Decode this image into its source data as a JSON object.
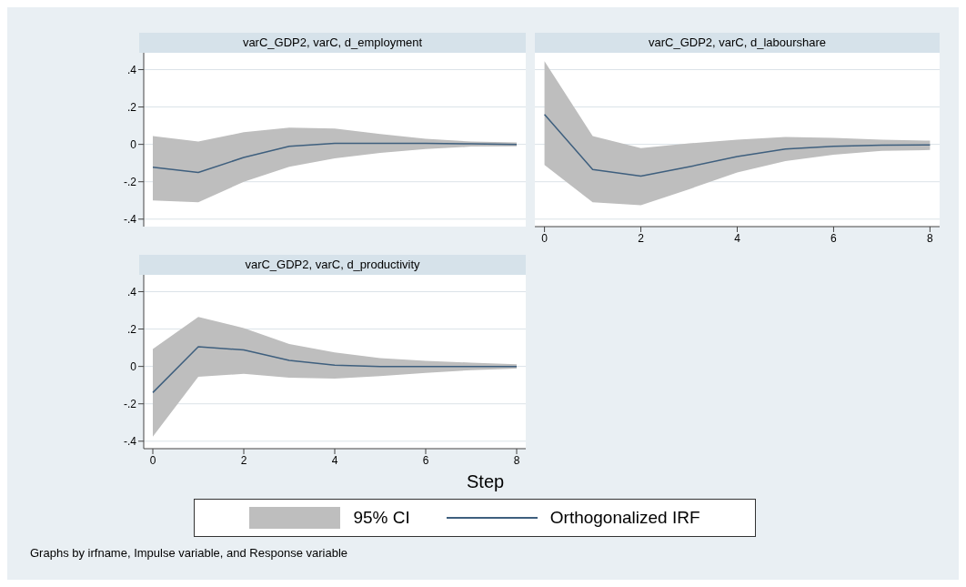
{
  "chart_data": [
    {
      "type": "line",
      "title": "varC_GDP2, varC, d_employment",
      "x": [
        0,
        1,
        2,
        3,
        4,
        5,
        6,
        7,
        8
      ],
      "xlim": [
        -0.2,
        8.2
      ],
      "xticks": [
        0,
        2,
        4,
        6,
        8
      ],
      "ylim": [
        -0.44,
        0.49
      ],
      "yticks": [
        {
          "value": -0.4,
          "label": "-.4"
        },
        {
          "value": -0.2,
          "label": "-.2"
        },
        0,
        {
          "value": 0.2,
          "label": ".2"
        },
        {
          "value": 0.4,
          "label": ".4"
        }
      ],
      "grid": "y",
      "tick_labels": "y",
      "legend": false,
      "series": [
        {
          "color": "#3e5f7e",
          "values": [
            -0.122,
            -0.15,
            -0.07,
            -0.01,
            0.005,
            0.005,
            0.005,
            0.003,
            0
          ],
          "lower": [
            -0.3,
            -0.31,
            -0.2,
            -0.12,
            -0.075,
            -0.045,
            -0.025,
            -0.012,
            -0.01
          ],
          "upper": [
            0.045,
            0.015,
            0.065,
            0.09,
            0.085,
            0.055,
            0.03,
            0.015,
            0.01
          ]
        }
      ]
    },
    {
      "type": "line",
      "title": "varC_GDP2, varC, d_labourshare",
      "x": [
        0,
        1,
        2,
        3,
        4,
        5,
        6,
        7,
        8
      ],
      "xlim": [
        -0.2,
        8.2
      ],
      "xticks": [
        0,
        2,
        4,
        6,
        8
      ],
      "ylim": [
        -0.44,
        0.49
      ],
      "yticks": [
        -0.4,
        -0.2,
        0,
        0.2,
        0.4
      ],
      "grid": "y",
      "tick_labels": "x",
      "legend": false,
      "series": [
        {
          "color": "#3e5f7e",
          "values": [
            0.16,
            -0.135,
            -0.17,
            -0.12,
            -0.065,
            -0.025,
            -0.01,
            -0.004,
            -0.003
          ],
          "lower": [
            -0.11,
            -0.31,
            -0.325,
            -0.24,
            -0.15,
            -0.09,
            -0.055,
            -0.035,
            -0.03
          ],
          "upper": [
            0.445,
            0.045,
            -0.02,
            0.005,
            0.025,
            0.04,
            0.035,
            0.025,
            0.02
          ]
        }
      ]
    },
    {
      "type": "line",
      "title": "varC_GDP2, varC, d_productivity",
      "xlabel": "Step",
      "x": [
        0,
        1,
        2,
        3,
        4,
        5,
        6,
        7,
        8
      ],
      "xlim": [
        -0.2,
        8.2
      ],
      "xticks": [
        0,
        2,
        4,
        6,
        8
      ],
      "ylim": [
        -0.44,
        0.49
      ],
      "yticks": [
        {
          "value": -0.4,
          "label": "-.4"
        },
        {
          "value": -0.2,
          "label": "-.2"
        },
        0,
        {
          "value": 0.2,
          "label": ".2"
        },
        {
          "value": 0.4,
          "label": ".4"
        }
      ],
      "grid": "y",
      "legend": "bottom",
      "annotations": [
        "95% CI",
        "Graphs by irfname, Impulse variable, and Response variable"
      ],
      "series": [
        {
          "name": "Orthogonalized IRF",
          "color": "#3e5f7e",
          "values": [
            -0.14,
            0.105,
            0.088,
            0.032,
            0.007,
            0,
            0,
            0,
            0
          ],
          "lower": [
            -0.375,
            -0.055,
            -0.04,
            -0.06,
            -0.065,
            -0.052,
            -0.035,
            -0.02,
            -0.012
          ],
          "upper": [
            0.093,
            0.265,
            0.205,
            0.12,
            0.075,
            0.045,
            0.03,
            0.02,
            0.012
          ]
        }
      ]
    }
  ]
}
